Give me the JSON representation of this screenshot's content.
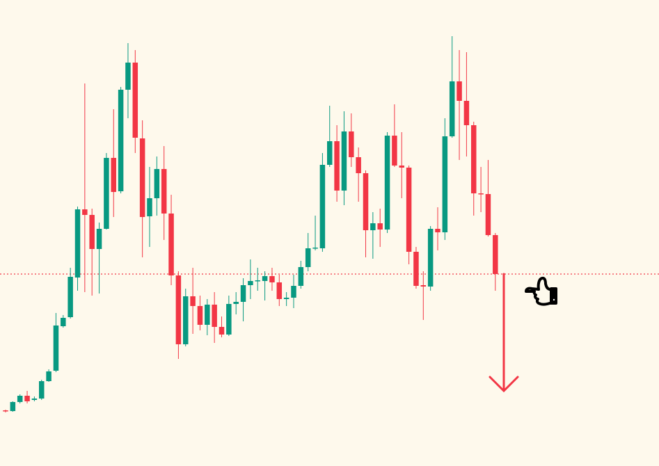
{
  "chart_data": {
    "type": "candlestick",
    "ylim": [
      0,
      670
    ],
    "up_color": "#089981",
    "down_color": "#f23645",
    "open": [
      80,
      79,
      92,
      101,
      95,
      97,
      122,
      137,
      201,
      214,
      271,
      369,
      361,
      312,
      341,
      443,
      395,
      541,
      580,
      471,
      359,
      385,
      427,
      363,
      274,
      175,
      244,
      230,
      203,
      232,
      200,
      189,
      233,
      236,
      260,
      266,
      266,
      273,
      264,
      240,
      242,
      259,
      286,
      313,
      313,
      433,
      467,
      396,
      481,
      444,
      421,
      339,
      349,
      340,
      475,
      432,
      429,
      308,
      260,
      258,
      341,
      336,
      474,
      553,
      525,
      490,
      392,
      391,
      332
    ],
    "high": [
      81,
      93,
      103,
      108,
      100,
      124,
      139,
      220,
      217,
      285,
      373,
      550,
      370,
      350,
      450,
      513,
      545,
      608,
      598,
      497,
      430,
      445,
      460,
      390,
      280,
      255,
      285,
      245,
      240,
      250,
      215,
      245,
      250,
      270,
      297,
      285,
      280,
      285,
      275,
      250,
      275,
      295,
      335,
      360,
      450,
      518,
      490,
      510,
      507,
      458,
      425,
      365,
      370,
      480,
      520,
      480,
      432,
      315,
      280,
      345,
      372,
      500,
      618,
      598,
      595,
      495,
      430,
      440,
      335
    ],
    "low": [
      77,
      78,
      90,
      90,
      93,
      95,
      121,
      135,
      199,
      212,
      252,
      250,
      245,
      248,
      340,
      358,
      392,
      500,
      450,
      300,
      315,
      360,
      325,
      260,
      154,
      172,
      190,
      195,
      188,
      177,
      185,
      187,
      218,
      208,
      240,
      252,
      238,
      252,
      230,
      230,
      227,
      255,
      280,
      310,
      308,
      430,
      380,
      375,
      430,
      380,
      300,
      298,
      315,
      335,
      430,
      385,
      290,
      255,
      210,
      252,
      310,
      325,
      472,
      440,
      445,
      360,
      365,
      330,
      252
    ],
    "close": [
      79,
      92,
      101,
      93,
      97,
      122,
      136,
      202,
      213,
      272,
      369,
      361,
      312,
      341,
      443,
      394,
      541,
      580,
      472,
      358,
      385,
      427,
      363,
      274,
      175,
      244,
      230,
      203,
      232,
      200,
      189,
      233,
      236,
      260,
      266,
      267,
      273,
      264,
      240,
      242,
      259,
      286,
      313,
      314,
      433,
      467,
      396,
      481,
      444,
      421,
      339,
      349,
      340,
      475,
      432,
      429,
      308,
      259,
      258,
      341,
      336,
      474,
      553,
      525,
      490,
      392,
      391,
      332,
      276
    ],
    "hline": {
      "value": 276,
      "color": "#f23645"
    }
  }
}
